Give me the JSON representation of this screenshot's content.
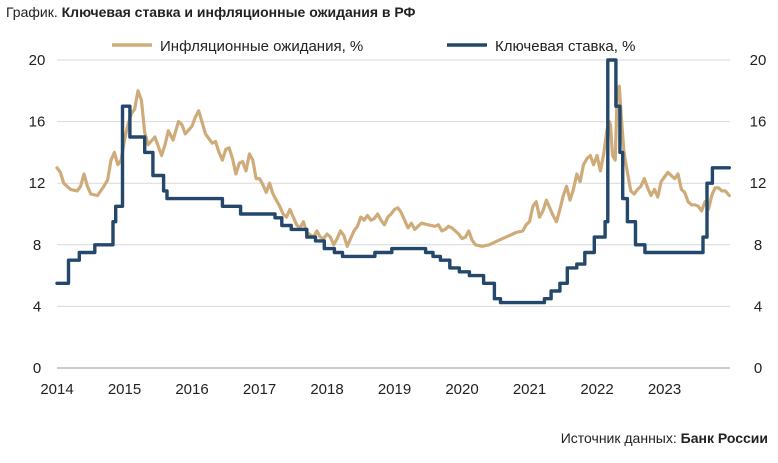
{
  "title": {
    "prefix": "График.",
    "main": "Ключевая ставка и инфляционные ожидания в РФ"
  },
  "source": {
    "prefix": "Источник данных:",
    "name": "Банк России"
  },
  "chart_data": {
    "type": "line",
    "ylim": [
      0,
      20
    ],
    "xlim": [
      2014.0,
      2023.96
    ],
    "y_ticks": [
      0,
      4,
      8,
      12,
      16,
      20
    ],
    "x_ticks": [
      2014,
      2015,
      2016,
      2017,
      2018,
      2019,
      2020,
      2021,
      2022,
      2023
    ],
    "x_tick_labels": [
      "2014",
      "2015",
      "2016",
      "2017",
      "2018",
      "2019",
      "2020",
      "2021",
      "2022",
      "2023"
    ],
    "right_axis_labels": true,
    "grid": "horizontal",
    "legend_position": "top",
    "series": [
      {
        "name": "Инфляционные ожидания, %",
        "color": "#cfab7a",
        "points": [
          [
            2014.0,
            13.0
          ],
          [
            2014.05,
            12.7
          ],
          [
            2014.1,
            12.0
          ],
          [
            2014.2,
            11.6
          ],
          [
            2014.3,
            11.5
          ],
          [
            2014.35,
            11.8
          ],
          [
            2014.4,
            12.6
          ],
          [
            2014.45,
            11.8
          ],
          [
            2014.5,
            11.3
          ],
          [
            2014.6,
            11.2
          ],
          [
            2014.68,
            11.7
          ],
          [
            2014.75,
            12.2
          ],
          [
            2014.8,
            13.5
          ],
          [
            2014.85,
            14.0
          ],
          [
            2014.9,
            13.2
          ],
          [
            2014.95,
            13.5
          ],
          [
            2015.0,
            14.8
          ],
          [
            2015.05,
            15.8
          ],
          [
            2015.1,
            16.5
          ],
          [
            2015.15,
            16.8
          ],
          [
            2015.2,
            18.0
          ],
          [
            2015.25,
            17.4
          ],
          [
            2015.3,
            15.3
          ],
          [
            2015.35,
            14.5
          ],
          [
            2015.45,
            15.0
          ],
          [
            2015.55,
            13.8
          ],
          [
            2015.6,
            14.5
          ],
          [
            2015.65,
            15.4
          ],
          [
            2015.72,
            14.8
          ],
          [
            2015.8,
            16.0
          ],
          [
            2015.85,
            15.8
          ],
          [
            2015.9,
            15.2
          ],
          [
            2016.0,
            15.7
          ],
          [
            2016.05,
            16.3
          ],
          [
            2016.1,
            16.7
          ],
          [
            2016.2,
            15.2
          ],
          [
            2016.3,
            14.6
          ],
          [
            2016.35,
            14.7
          ],
          [
            2016.4,
            14.0
          ],
          [
            2016.45,
            13.5
          ],
          [
            2016.5,
            14.2
          ],
          [
            2016.55,
            14.3
          ],
          [
            2016.6,
            13.6
          ],
          [
            2016.65,
            12.6
          ],
          [
            2016.7,
            13.3
          ],
          [
            2016.75,
            13.4
          ],
          [
            2016.8,
            12.8
          ],
          [
            2016.85,
            13.9
          ],
          [
            2016.9,
            13.5
          ],
          [
            2016.95,
            12.3
          ],
          [
            2017.0,
            12.3
          ],
          [
            2017.05,
            11.9
          ],
          [
            2017.1,
            11.4
          ],
          [
            2017.15,
            12.0
          ],
          [
            2017.2,
            11.3
          ],
          [
            2017.3,
            10.5
          ],
          [
            2017.35,
            10.0
          ],
          [
            2017.4,
            9.8
          ],
          [
            2017.45,
            10.3
          ],
          [
            2017.5,
            9.8
          ],
          [
            2017.55,
            9.3
          ],
          [
            2017.6,
            9.1
          ],
          [
            2017.65,
            9.5
          ],
          [
            2017.7,
            8.8
          ],
          [
            2017.8,
            8.5
          ],
          [
            2017.85,
            8.9
          ],
          [
            2017.9,
            8.5
          ],
          [
            2017.95,
            8.4
          ],
          [
            2018.0,
            8.7
          ],
          [
            2018.05,
            8.5
          ],
          [
            2018.1,
            8.0
          ],
          [
            2018.15,
            8.4
          ],
          [
            2018.2,
            8.9
          ],
          [
            2018.25,
            8.6
          ],
          [
            2018.3,
            7.9
          ],
          [
            2018.35,
            8.4
          ],
          [
            2018.4,
            8.9
          ],
          [
            2018.45,
            9.2
          ],
          [
            2018.5,
            9.8
          ],
          [
            2018.55,
            9.6
          ],
          [
            2018.6,
            9.9
          ],
          [
            2018.65,
            9.6
          ],
          [
            2018.7,
            9.7
          ],
          [
            2018.75,
            10.0
          ],
          [
            2018.8,
            9.6
          ],
          [
            2018.85,
            9.3
          ],
          [
            2018.9,
            9.8
          ],
          [
            2018.95,
            10.0
          ],
          [
            2019.0,
            10.3
          ],
          [
            2019.05,
            10.4
          ],
          [
            2019.1,
            10.1
          ],
          [
            2019.15,
            9.6
          ],
          [
            2019.2,
            9.1
          ],
          [
            2019.25,
            9.4
          ],
          [
            2019.3,
            9.0
          ],
          [
            2019.4,
            9.4
          ],
          [
            2019.5,
            9.3
          ],
          [
            2019.6,
            9.2
          ],
          [
            2019.65,
            9.3
          ],
          [
            2019.7,
            8.9
          ],
          [
            2019.75,
            9.0
          ],
          [
            2019.8,
            9.2
          ],
          [
            2019.85,
            9.1
          ],
          [
            2019.9,
            8.9
          ],
          [
            2019.95,
            8.7
          ],
          [
            2020.0,
            8.4
          ],
          [
            2020.05,
            8.5
          ],
          [
            2020.1,
            8.9
          ],
          [
            2020.15,
            8.3
          ],
          [
            2020.2,
            8.0
          ],
          [
            2020.3,
            7.9
          ],
          [
            2020.4,
            8.0
          ],
          [
            2020.5,
            8.2
          ],
          [
            2020.6,
            8.4
          ],
          [
            2020.7,
            8.6
          ],
          [
            2020.8,
            8.8
          ],
          [
            2020.9,
            8.9
          ],
          [
            2020.95,
            9.3
          ],
          [
            2021.0,
            9.5
          ],
          [
            2021.05,
            10.5
          ],
          [
            2021.1,
            10.8
          ],
          [
            2021.15,
            9.8
          ],
          [
            2021.2,
            10.2
          ],
          [
            2021.25,
            10.9
          ],
          [
            2021.3,
            10.4
          ],
          [
            2021.35,
            9.9
          ],
          [
            2021.4,
            9.5
          ],
          [
            2021.45,
            10.3
          ],
          [
            2021.5,
            11.2
          ],
          [
            2021.55,
            11.8
          ],
          [
            2021.6,
            10.9
          ],
          [
            2021.65,
            11.6
          ],
          [
            2021.7,
            12.6
          ],
          [
            2021.75,
            12.1
          ],
          [
            2021.8,
            13.2
          ],
          [
            2021.85,
            13.6
          ],
          [
            2021.9,
            13.8
          ],
          [
            2021.95,
            13.2
          ],
          [
            2022.0,
            13.8
          ],
          [
            2022.05,
            12.8
          ],
          [
            2022.1,
            13.9
          ],
          [
            2022.15,
            15.5
          ],
          [
            2022.18,
            16.0
          ],
          [
            2022.2,
            15.8
          ],
          [
            2022.23,
            13.8
          ],
          [
            2022.27,
            13.5
          ],
          [
            2022.3,
            17.8
          ],
          [
            2022.33,
            18.3
          ],
          [
            2022.36,
            16.3
          ],
          [
            2022.4,
            14.0
          ],
          [
            2022.45,
            12.7
          ],
          [
            2022.5,
            11.5
          ],
          [
            2022.55,
            11.3
          ],
          [
            2022.6,
            11.6
          ],
          [
            2022.65,
            11.8
          ],
          [
            2022.7,
            12.3
          ],
          [
            2022.75,
            11.7
          ],
          [
            2022.8,
            11.2
          ],
          [
            2022.85,
            11.6
          ],
          [
            2022.9,
            11.1
          ],
          [
            2022.95,
            12.1
          ],
          [
            2023.0,
            12.4
          ],
          [
            2023.05,
            12.7
          ],
          [
            2023.1,
            12.5
          ],
          [
            2023.15,
            12.3
          ],
          [
            2023.2,
            12.6
          ],
          [
            2023.25,
            11.6
          ],
          [
            2023.3,
            11.4
          ],
          [
            2023.35,
            10.8
          ],
          [
            2023.4,
            10.6
          ],
          [
            2023.45,
            10.6
          ],
          [
            2023.5,
            10.5
          ],
          [
            2023.55,
            10.2
          ],
          [
            2023.6,
            10.8
          ],
          [
            2023.65,
            10.3
          ],
          [
            2023.7,
            11.2
          ],
          [
            2023.75,
            11.7
          ],
          [
            2023.8,
            11.7
          ],
          [
            2023.85,
            11.5
          ],
          [
            2023.9,
            11.5
          ],
          [
            2023.96,
            11.2
          ]
        ]
      },
      {
        "name": "Ключевая ставка, %",
        "color": "#24486b",
        "step": true,
        "points": [
          [
            2014.0,
            5.5
          ],
          [
            2014.17,
            7.0
          ],
          [
            2014.33,
            7.5
          ],
          [
            2014.56,
            8.0
          ],
          [
            2014.83,
            9.5
          ],
          [
            2014.87,
            10.5
          ],
          [
            2014.97,
            17.0
          ],
          [
            2015.08,
            15.0
          ],
          [
            2015.3,
            14.0
          ],
          [
            2015.42,
            12.5
          ],
          [
            2015.58,
            11.5
          ],
          [
            2015.63,
            11.0
          ],
          [
            2016.45,
            10.5
          ],
          [
            2016.72,
            10.0
          ],
          [
            2017.23,
            9.75
          ],
          [
            2017.33,
            9.25
          ],
          [
            2017.47,
            9.0
          ],
          [
            2017.7,
            8.5
          ],
          [
            2017.83,
            8.25
          ],
          [
            2017.96,
            7.75
          ],
          [
            2018.11,
            7.5
          ],
          [
            2018.23,
            7.25
          ],
          [
            2018.71,
            7.5
          ],
          [
            2018.96,
            7.75
          ],
          [
            2019.46,
            7.5
          ],
          [
            2019.57,
            7.25
          ],
          [
            2019.68,
            7.0
          ],
          [
            2019.82,
            6.5
          ],
          [
            2019.96,
            6.25
          ],
          [
            2020.11,
            6.0
          ],
          [
            2020.32,
            5.5
          ],
          [
            2020.48,
            4.5
          ],
          [
            2020.57,
            4.25
          ],
          [
            2021.22,
            4.5
          ],
          [
            2021.32,
            5.0
          ],
          [
            2021.45,
            5.5
          ],
          [
            2021.56,
            6.5
          ],
          [
            2021.7,
            6.75
          ],
          [
            2021.82,
            7.5
          ],
          [
            2021.96,
            8.5
          ],
          [
            2022.12,
            9.5
          ],
          [
            2022.16,
            20.0
          ],
          [
            2022.28,
            17.0
          ],
          [
            2022.34,
            14.0
          ],
          [
            2022.38,
            11.0
          ],
          [
            2022.45,
            9.5
          ],
          [
            2022.57,
            8.0
          ],
          [
            2022.71,
            7.5
          ],
          [
            2023.57,
            8.5
          ],
          [
            2023.63,
            12.0
          ],
          [
            2023.71,
            13.0
          ],
          [
            2023.96,
            13.0
          ]
        ]
      }
    ]
  }
}
